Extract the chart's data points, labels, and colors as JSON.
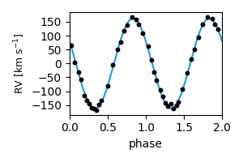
{
  "xlabel": "phase",
  "ylabel": "RV [km s$^{-1}$]",
  "xlim": [
    0.0,
    2.0
  ],
  "ylim": [
    -185,
    185
  ],
  "yticks": [
    -150,
    -100,
    -50,
    0,
    50,
    100,
    150
  ],
  "xticks": [
    0.0,
    0.5,
    1.0,
    1.5,
    2.0
  ],
  "amplitude": 162,
  "phi0": -3.665,
  "curve_color": "#1f9bcf",
  "dot_color": "black",
  "dot_size": 18,
  "figsize": [
    3.0,
    2.0
  ],
  "dpi": 100
}
